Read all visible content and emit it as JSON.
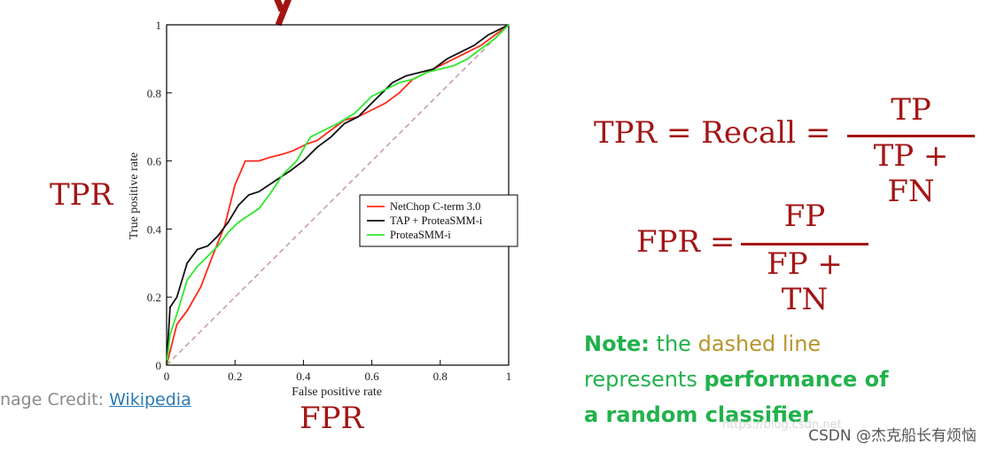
{
  "left_label_tpr": "TPR",
  "bottom_label_fpr": "FPR",
  "credit": {
    "prefix": "nage Credit: ",
    "link": "Wikipedia"
  },
  "formulas": {
    "tpr_lhs": "TPR = Recall =",
    "tpr_num": "TP",
    "tpr_den": "TP + FN",
    "fpr_lhs": "FPR =",
    "fpr_num": "FP",
    "fpr_den": "FP + TN"
  },
  "note": {
    "label": "Note:",
    "t1": " the ",
    "dashed": "dashed line",
    "t2": "represents ",
    "bold1": "performance of",
    "bold2": "a random classifier"
  },
  "watermark": "CSDN @杰克船长有烦恼",
  "watermark_faint": "https://blog.csdn.net",
  "colors": {
    "accent": "#a31515",
    "note": "#22b24c",
    "dashed_word": "#b8962e",
    "link": "#2a7ab5"
  },
  "chart_data": {
    "type": "line",
    "xlabel": "False positive rate",
    "ylabel": "True positive rate",
    "xlim": [
      0,
      1
    ],
    "ylim": [
      0,
      1
    ],
    "xticks": [
      "0",
      "0.2",
      "0.4",
      "0.6",
      "0.8",
      "1"
    ],
    "yticks": [
      "0",
      "0.2",
      "0.4",
      "0.6",
      "0.8",
      "1"
    ],
    "grid": false,
    "legend_position": "center-right",
    "series": [
      {
        "name": "NetChop C-term 3.0",
        "color": "#ff2a1a",
        "x": [
          0,
          0.03,
          0.06,
          0.1,
          0.13,
          0.17,
          0.2,
          0.23,
          0.27,
          0.3,
          0.34,
          0.37,
          0.41,
          0.44,
          0.48,
          0.52,
          0.56,
          0.6,
          0.64,
          0.68,
          0.72,
          0.76,
          0.8,
          0.84,
          0.88,
          0.92,
          0.96,
          1
        ],
        "y": [
          0,
          0.12,
          0.16,
          0.23,
          0.31,
          0.41,
          0.53,
          0.6,
          0.6,
          0.61,
          0.62,
          0.63,
          0.65,
          0.66,
          0.69,
          0.72,
          0.73,
          0.75,
          0.77,
          0.8,
          0.84,
          0.86,
          0.88,
          0.9,
          0.92,
          0.94,
          0.97,
          1
        ]
      },
      {
        "name": "TAP + ProteaSMM-i",
        "color": "#111111",
        "x": [
          0,
          0.01,
          0.03,
          0.06,
          0.09,
          0.12,
          0.15,
          0.18,
          0.21,
          0.24,
          0.27,
          0.3,
          0.33,
          0.36,
          0.4,
          0.44,
          0.48,
          0.52,
          0.56,
          0.6,
          0.63,
          0.66,
          0.7,
          0.74,
          0.78,
          0.82,
          0.86,
          0.9,
          0.94,
          0.98,
          1
        ],
        "y": [
          0,
          0.17,
          0.2,
          0.3,
          0.34,
          0.35,
          0.38,
          0.42,
          0.47,
          0.5,
          0.51,
          0.53,
          0.55,
          0.57,
          0.6,
          0.64,
          0.67,
          0.71,
          0.73,
          0.77,
          0.8,
          0.83,
          0.85,
          0.86,
          0.87,
          0.9,
          0.92,
          0.94,
          0.97,
          0.99,
          1
        ]
      },
      {
        "name": "ProteaSMM-i",
        "color": "#2ee82e",
        "x": [
          0,
          0.01,
          0.03,
          0.06,
          0.09,
          0.12,
          0.15,
          0.18,
          0.21,
          0.24,
          0.27,
          0.3,
          0.34,
          0.38,
          0.42,
          0.46,
          0.5,
          0.55,
          0.6,
          0.64,
          0.68,
          0.72,
          0.76,
          0.8,
          0.84,
          0.88,
          0.92,
          0.96,
          1
        ],
        "y": [
          0,
          0.09,
          0.15,
          0.25,
          0.29,
          0.32,
          0.35,
          0.39,
          0.42,
          0.44,
          0.46,
          0.5,
          0.56,
          0.6,
          0.67,
          0.69,
          0.71,
          0.74,
          0.79,
          0.81,
          0.83,
          0.84,
          0.86,
          0.87,
          0.88,
          0.9,
          0.93,
          0.96,
          1
        ]
      },
      {
        "name": "",
        "color": "#c8a0a0",
        "dashed": true,
        "x": [
          0,
          1
        ],
        "y": [
          0,
          1
        ]
      }
    ]
  }
}
